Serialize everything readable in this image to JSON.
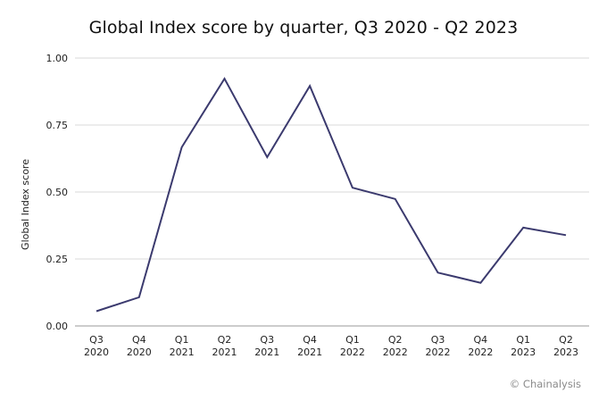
{
  "chart_data": {
    "type": "line",
    "title": "Global Index score by quarter, Q3 2020 - Q2 2023",
    "xlabel": "",
    "ylabel": "Global Index score",
    "categories": [
      [
        "Q3",
        "2020"
      ],
      [
        "Q4",
        "2020"
      ],
      [
        "Q1",
        "2021"
      ],
      [
        "Q2",
        "2021"
      ],
      [
        "Q3",
        "2021"
      ],
      [
        "Q4",
        "2021"
      ],
      [
        "Q1",
        "2022"
      ],
      [
        "Q2",
        "2022"
      ],
      [
        "Q3",
        "2022"
      ],
      [
        "Q4",
        "2022"
      ],
      [
        "Q1",
        "2023"
      ],
      [
        "Q2",
        "2023"
      ]
    ],
    "series": [
      {
        "values": [
          0.055,
          0.107,
          0.667,
          0.923,
          0.63,
          0.896,
          0.516,
          0.474,
          0.199,
          0.161,
          0.367,
          0.339
        ],
        "color": "#3b3a6e"
      }
    ],
    "yticks": [
      "0.00",
      "0.25",
      "0.50",
      "0.75",
      "1.00"
    ],
    "ylim": [
      0,
      1
    ],
    "grid": true,
    "legend": "none"
  },
  "credit": "© Chainalysis"
}
